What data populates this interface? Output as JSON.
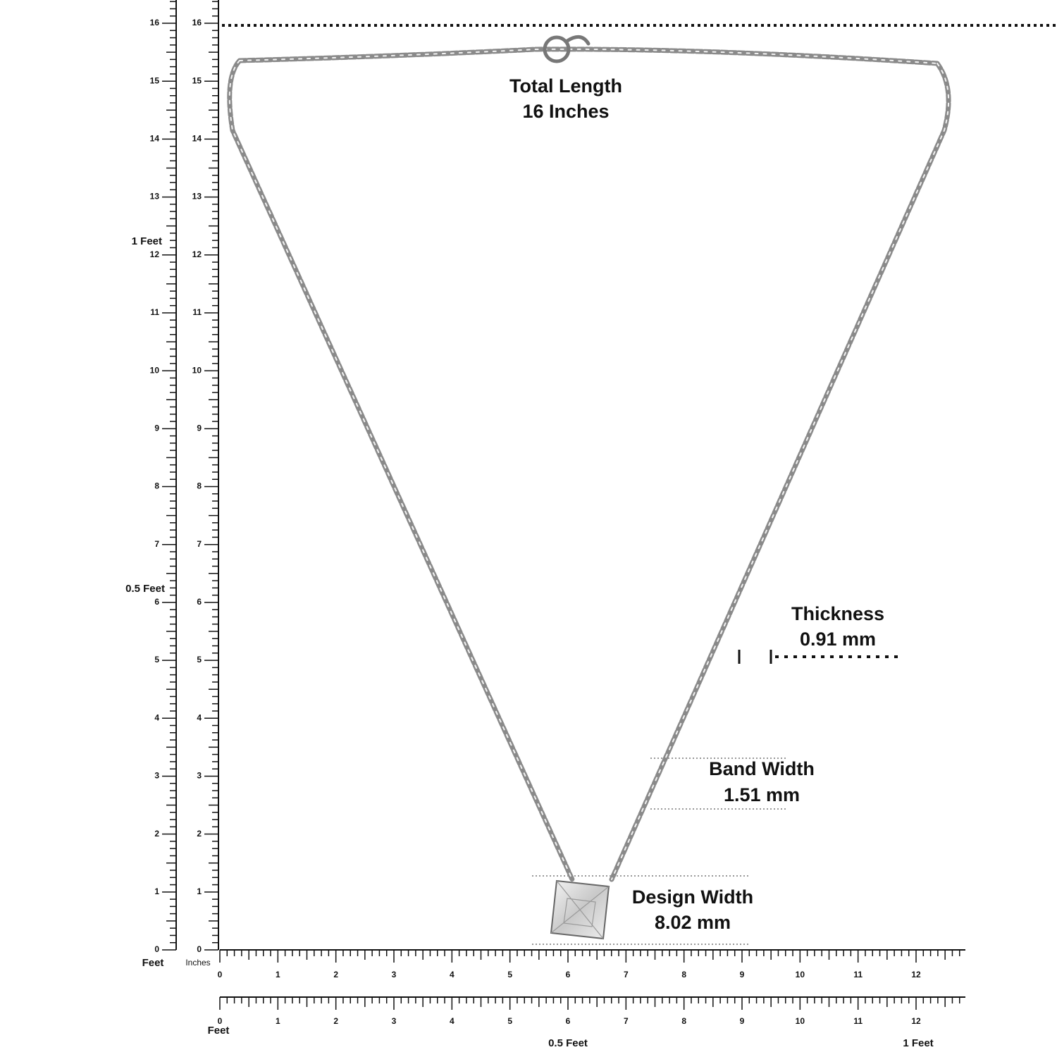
{
  "annotations": {
    "total_length": {
      "title": "Total Length",
      "value": "16 Inches"
    },
    "thickness": {
      "title": "Thickness",
      "value": "0.91 mm"
    },
    "band_width": {
      "title": "Band Width",
      "value": "1.51 mm"
    },
    "design_width": {
      "title": "Design Width",
      "value": "8.02 mm"
    }
  },
  "left_feet_ruler": {
    "unit": "Feet",
    "ticks": [
      0,
      1,
      2,
      3,
      4,
      5,
      6,
      7,
      8,
      9,
      10,
      11,
      12,
      13,
      14,
      15,
      16
    ],
    "half_foot": "0.5 Feet",
    "one_foot": "1 Feet"
  },
  "left_inch_ruler": {
    "unit": "Inches",
    "ticks": [
      0,
      1,
      2,
      3,
      4,
      5,
      6,
      7,
      8,
      9,
      10,
      11,
      12,
      13,
      14,
      15,
      16
    ]
  },
  "bottom_inch_ruler": {
    "ticks": [
      0,
      1,
      2,
      3,
      4,
      5,
      6,
      7,
      8,
      9,
      10,
      11,
      12
    ]
  },
  "bottom_feet_ruler": {
    "unit": "Feet",
    "ticks": [
      0,
      1,
      2,
      3,
      4,
      5,
      6,
      7,
      8,
      9,
      10,
      11,
      12
    ],
    "half_foot": "0.5 Feet",
    "one_foot": "1 Feet"
  }
}
